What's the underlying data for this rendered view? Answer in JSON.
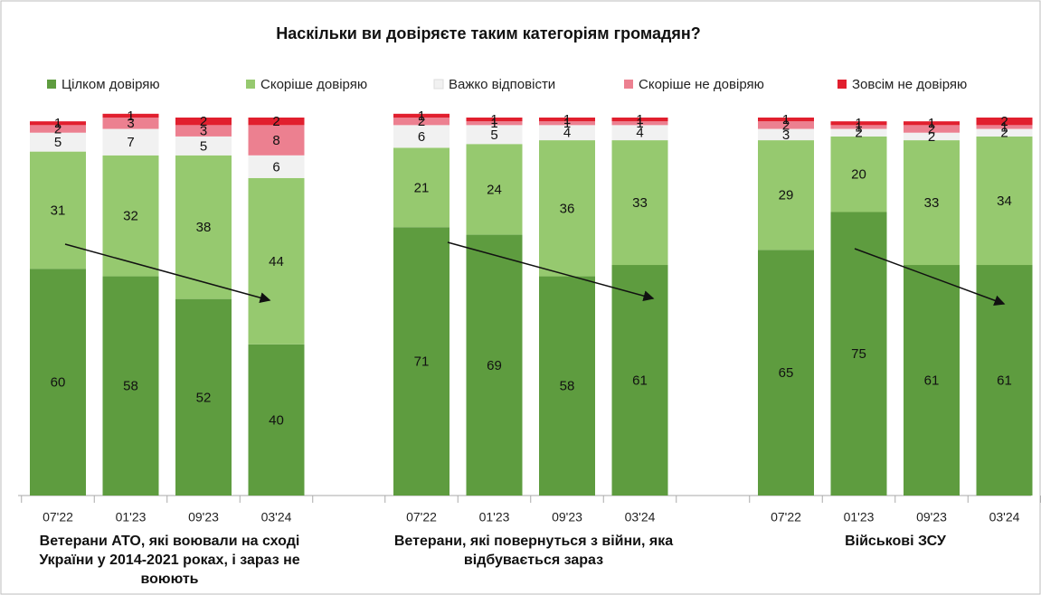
{
  "chart_data": {
    "type": "stacked_bar",
    "title": "Наскільки ви довіряєте таким категоріям громадян?",
    "ylim": [
      0,
      100
    ],
    "series": [
      {
        "name": "Цілком довіряю",
        "color": "#5e9c3f"
      },
      {
        "name": "Скоріше довіряю",
        "color": "#96c96f"
      },
      {
        "name": "Важко відповісти",
        "color": "#f1f1f1"
      },
      {
        "name": "Скоріше не довіряю",
        "color": "#ec8090"
      },
      {
        "name": "Зовсім не довіряю",
        "color": "#e11f2e"
      }
    ],
    "groups": [
      {
        "label": "Ветерани АТО, які воювали на  сході України у 2014-2021 роках, і зараз не воюють",
        "categories": [
          "07'22",
          "01'23",
          "09'23",
          "03'24"
        ],
        "values": [
          [
            60,
            58,
            52,
            40
          ],
          [
            31,
            32,
            38,
            44
          ],
          [
            5,
            7,
            5,
            6
          ],
          [
            2,
            3,
            3,
            8
          ],
          [
            1,
            1,
            2,
            2
          ]
        ]
      },
      {
        "label": "Ветерани, які повернуться з війни, яка відбувається зараз",
        "categories": [
          "07'22",
          "01'23",
          "09'23",
          "03'24"
        ],
        "values": [
          [
            71,
            69,
            58,
            61
          ],
          [
            21,
            24,
            36,
            33
          ],
          [
            6,
            5,
            4,
            4
          ],
          [
            2,
            1,
            1,
            1
          ],
          [
            1,
            1,
            1,
            1
          ]
        ]
      },
      {
        "label": "Військові ЗСУ",
        "categories": [
          "07'22",
          "01'23",
          "09'23",
          "03'24"
        ],
        "values": [
          [
            65,
            75,
            61,
            61
          ],
          [
            29,
            20,
            33,
            34
          ],
          [
            3,
            2,
            2,
            2
          ],
          [
            2,
            1,
            2,
            1
          ],
          [
            1,
            1,
            1,
            2
          ]
        ]
      }
    ]
  }
}
